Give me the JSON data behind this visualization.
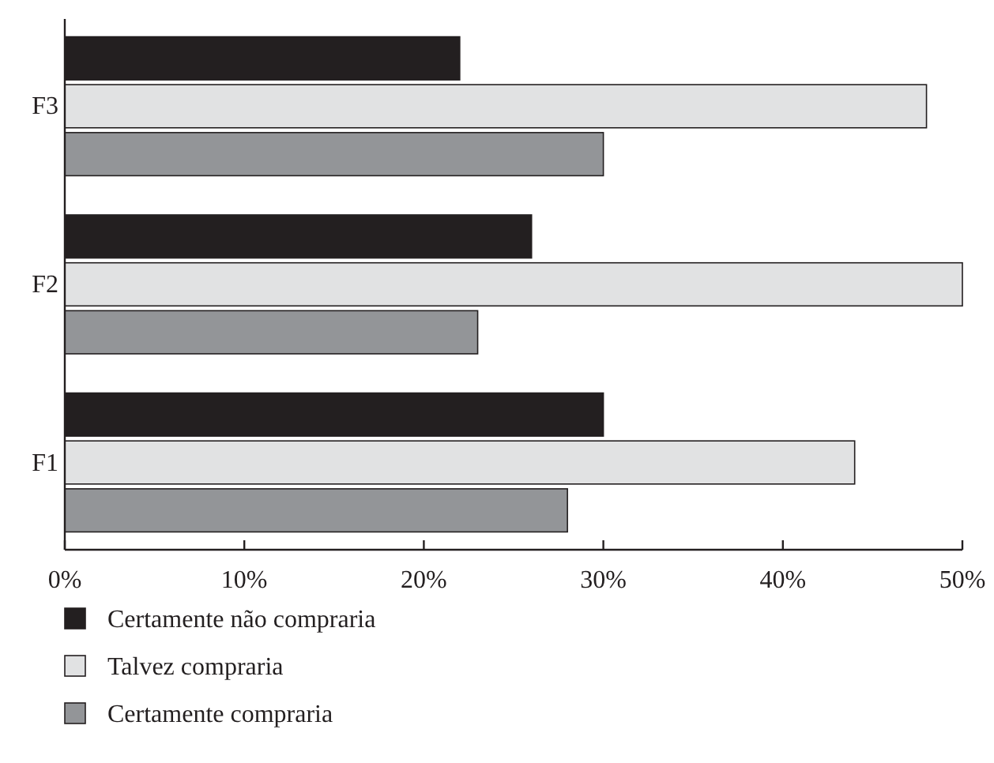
{
  "chart_data": {
    "type": "bar",
    "orientation": "horizontal",
    "categories": [
      "F3",
      "F2",
      "F1"
    ],
    "series": [
      {
        "name": "Certamente não compraria",
        "color": "#231f20",
        "values": [
          22,
          26,
          30
        ]
      },
      {
        "name": "Talvez compraria",
        "color": "#e1e2e3",
        "values": [
          48,
          50,
          44
        ]
      },
      {
        "name": "Certamente compraria",
        "color": "#939598",
        "values": [
          30,
          23,
          28
        ]
      }
    ],
    "xlim": [
      0,
      50
    ],
    "xticks": [
      {
        "value": 0,
        "label": "0%"
      },
      {
        "value": 10,
        "label": "10%"
      },
      {
        "value": 20,
        "label": "20%"
      },
      {
        "value": 30,
        "label": "30%"
      },
      {
        "value": 40,
        "label": "40%"
      },
      {
        "value": 50,
        "label": "50%"
      }
    ],
    "grid": false,
    "legend": "bottom"
  }
}
